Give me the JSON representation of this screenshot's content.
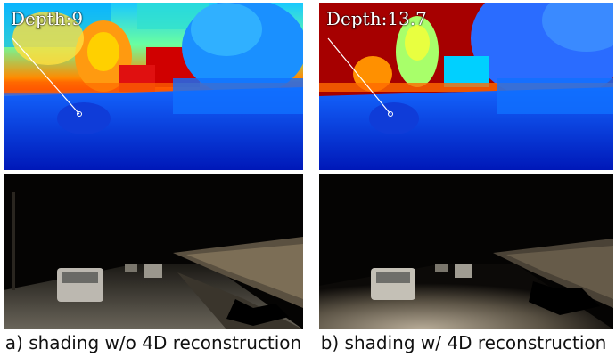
{
  "figure": {
    "left": {
      "depth_label": "Depth:9",
      "caption": "a) shading w/o 4D reconstruction"
    },
    "right": {
      "depth_label": "Depth:13.7",
      "caption": "b) shading w/ 4D reconstruction"
    }
  },
  "colors": {
    "depth_far": "#a60000",
    "depth_near": "#0018c8",
    "night_dark": "#050403"
  }
}
